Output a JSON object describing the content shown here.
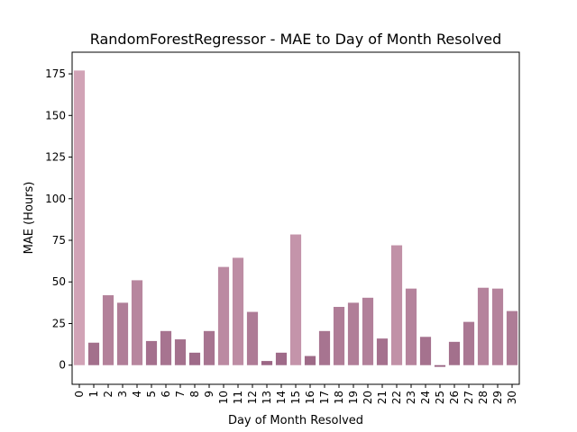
{
  "chart_data": {
    "type": "bar",
    "title": "RandomForestRegressor - MAE to Day of Month Resolved",
    "xlabel": "Day of Month Resolved",
    "ylabel": "MAE (Hours)",
    "categories": [
      "0",
      "1",
      "2",
      "3",
      "4",
      "5",
      "6",
      "7",
      "8",
      "9",
      "10",
      "11",
      "12",
      "13",
      "14",
      "15",
      "16",
      "17",
      "18",
      "19",
      "20",
      "21",
      "22",
      "23",
      "24",
      "25",
      "26",
      "27",
      "28",
      "29",
      "30"
    ],
    "values": [
      177,
      13.5,
      42,
      37.5,
      51,
      14.5,
      20.5,
      15.5,
      7.5,
      20.5,
      59,
      64.5,
      32,
      2.5,
      7.5,
      78.5,
      5.5,
      20.5,
      35,
      37.5,
      40.5,
      16,
      72,
      46,
      17,
      -1,
      14,
      26,
      46.5,
      46,
      32.5
    ],
    "ylim": [
      -11.5,
      188
    ],
    "yticks": [
      0,
      25,
      50,
      75,
      100,
      125,
      150,
      175
    ],
    "grid": false,
    "palette": [
      "#d1a3b6",
      "#986382"
    ]
  }
}
